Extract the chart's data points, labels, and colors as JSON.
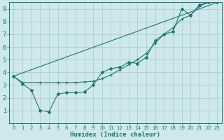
{
  "xlabel": "Humidex (Indice chaleur)",
  "bg_color": "#cfe8ec",
  "grid_color": "#aacdd4",
  "line_color": "#1a7870",
  "xlim": [
    -0.5,
    23.5
  ],
  "ylim": [
    0,
    9.5
  ],
  "xticks": [
    0,
    1,
    2,
    3,
    4,
    5,
    6,
    7,
    8,
    9,
    10,
    11,
    12,
    13,
    14,
    15,
    16,
    17,
    18,
    19,
    20,
    21,
    22,
    23
  ],
  "yticks": [
    1,
    2,
    3,
    4,
    5,
    6,
    7,
    8,
    9
  ],
  "line1_x": [
    0,
    1,
    2,
    3,
    4,
    5,
    6,
    7,
    8,
    9,
    10,
    11,
    12,
    13,
    14,
    15,
    16,
    17,
    18,
    19,
    20,
    21,
    22,
    23
  ],
  "line1_y": [
    3.7,
    3.1,
    2.6,
    1.0,
    0.9,
    2.3,
    2.4,
    2.4,
    2.45,
    3.0,
    4.0,
    4.3,
    4.4,
    4.8,
    4.7,
    5.2,
    6.5,
    7.0,
    7.2,
    9.0,
    8.5,
    9.3,
    9.5,
    9.5
  ],
  "line2_x": [
    0,
    1,
    3,
    5,
    6,
    7,
    8,
    9,
    10,
    11,
    12,
    13,
    14,
    15,
    16,
    17,
    18,
    19,
    20,
    21,
    22,
    23
  ],
  "line2_y": [
    3.7,
    3.2,
    3.2,
    3.2,
    3.2,
    3.2,
    3.25,
    3.3,
    3.5,
    3.8,
    4.2,
    4.6,
    5.0,
    5.5,
    6.3,
    7.0,
    7.5,
    8.2,
    8.5,
    9.2,
    9.5,
    9.5
  ],
  "line3_x": [
    0,
    23
  ],
  "line3_y": [
    3.7,
    9.5
  ]
}
